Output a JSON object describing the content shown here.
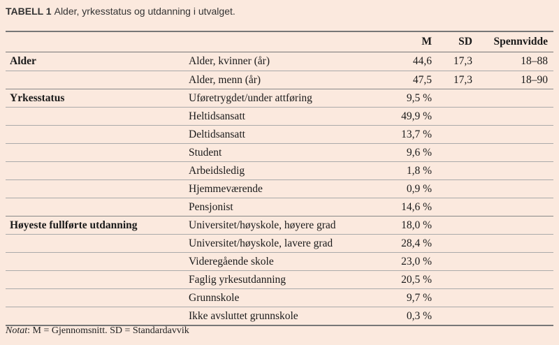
{
  "caption": {
    "label": "TABELL 1",
    "text": "Alder, yrkesstatus og utdanning i utvalget."
  },
  "headers": {
    "group": "",
    "item": "",
    "m": "M",
    "sd": "SD",
    "range": "Spennvidde"
  },
  "rows": [
    {
      "group": "Alder",
      "item": "Alder, kvinner (år)",
      "m": "44,6",
      "sd": "17,3",
      "range": "18–88"
    },
    {
      "group": "",
      "item": "Alder, menn (år)",
      "m": "47,5",
      "sd": "17,3",
      "range": "18–90"
    },
    {
      "group": "Yrkesstatus",
      "item": "Uføretrygdet/under attføring",
      "m": "9,5 %",
      "sd": "",
      "range": ""
    },
    {
      "group": "",
      "item": "Heltidsansatt",
      "m": "49,9 %",
      "sd": "",
      "range": ""
    },
    {
      "group": "",
      "item": "Deltidsansatt",
      "m": "13,7 %",
      "sd": "",
      "range": ""
    },
    {
      "group": "",
      "item": "Student",
      "m": "9,6 %",
      "sd": "",
      "range": ""
    },
    {
      "group": "",
      "item": "Arbeidsledig",
      "m": "1,8 %",
      "sd": "",
      "range": ""
    },
    {
      "group": "",
      "item": "Hjemmeværende",
      "m": "0,9 %",
      "sd": "",
      "range": ""
    },
    {
      "group": "",
      "item": "Pensjonist",
      "m": "14,6 %",
      "sd": "",
      "range": ""
    },
    {
      "group": "Høyeste fullførte utdanning",
      "item": "Universitet/høyskole, høyere grad",
      "m": "18,0 %",
      "sd": "",
      "range": ""
    },
    {
      "group": "",
      "item": "Universitet/høyskole, lavere grad",
      "m": "28,4 %",
      "sd": "",
      "range": ""
    },
    {
      "group": "",
      "item": "Videregående skole",
      "m": "23,0 %",
      "sd": "",
      "range": ""
    },
    {
      "group": "",
      "item": "Faglig yrkesutdanning",
      "m": "20,5 %",
      "sd": "",
      "range": ""
    },
    {
      "group": "",
      "item": "Grunnskole",
      "m": "9,7 %",
      "sd": "",
      "range": ""
    },
    {
      "group": "",
      "item": "Ikke avsluttet grunnskole",
      "m": "0,3 %",
      "sd": "",
      "range": ""
    }
  ],
  "note": {
    "label": "Notat",
    "text": ": M = Gjennomsnitt. SD = Standardavvik"
  }
}
